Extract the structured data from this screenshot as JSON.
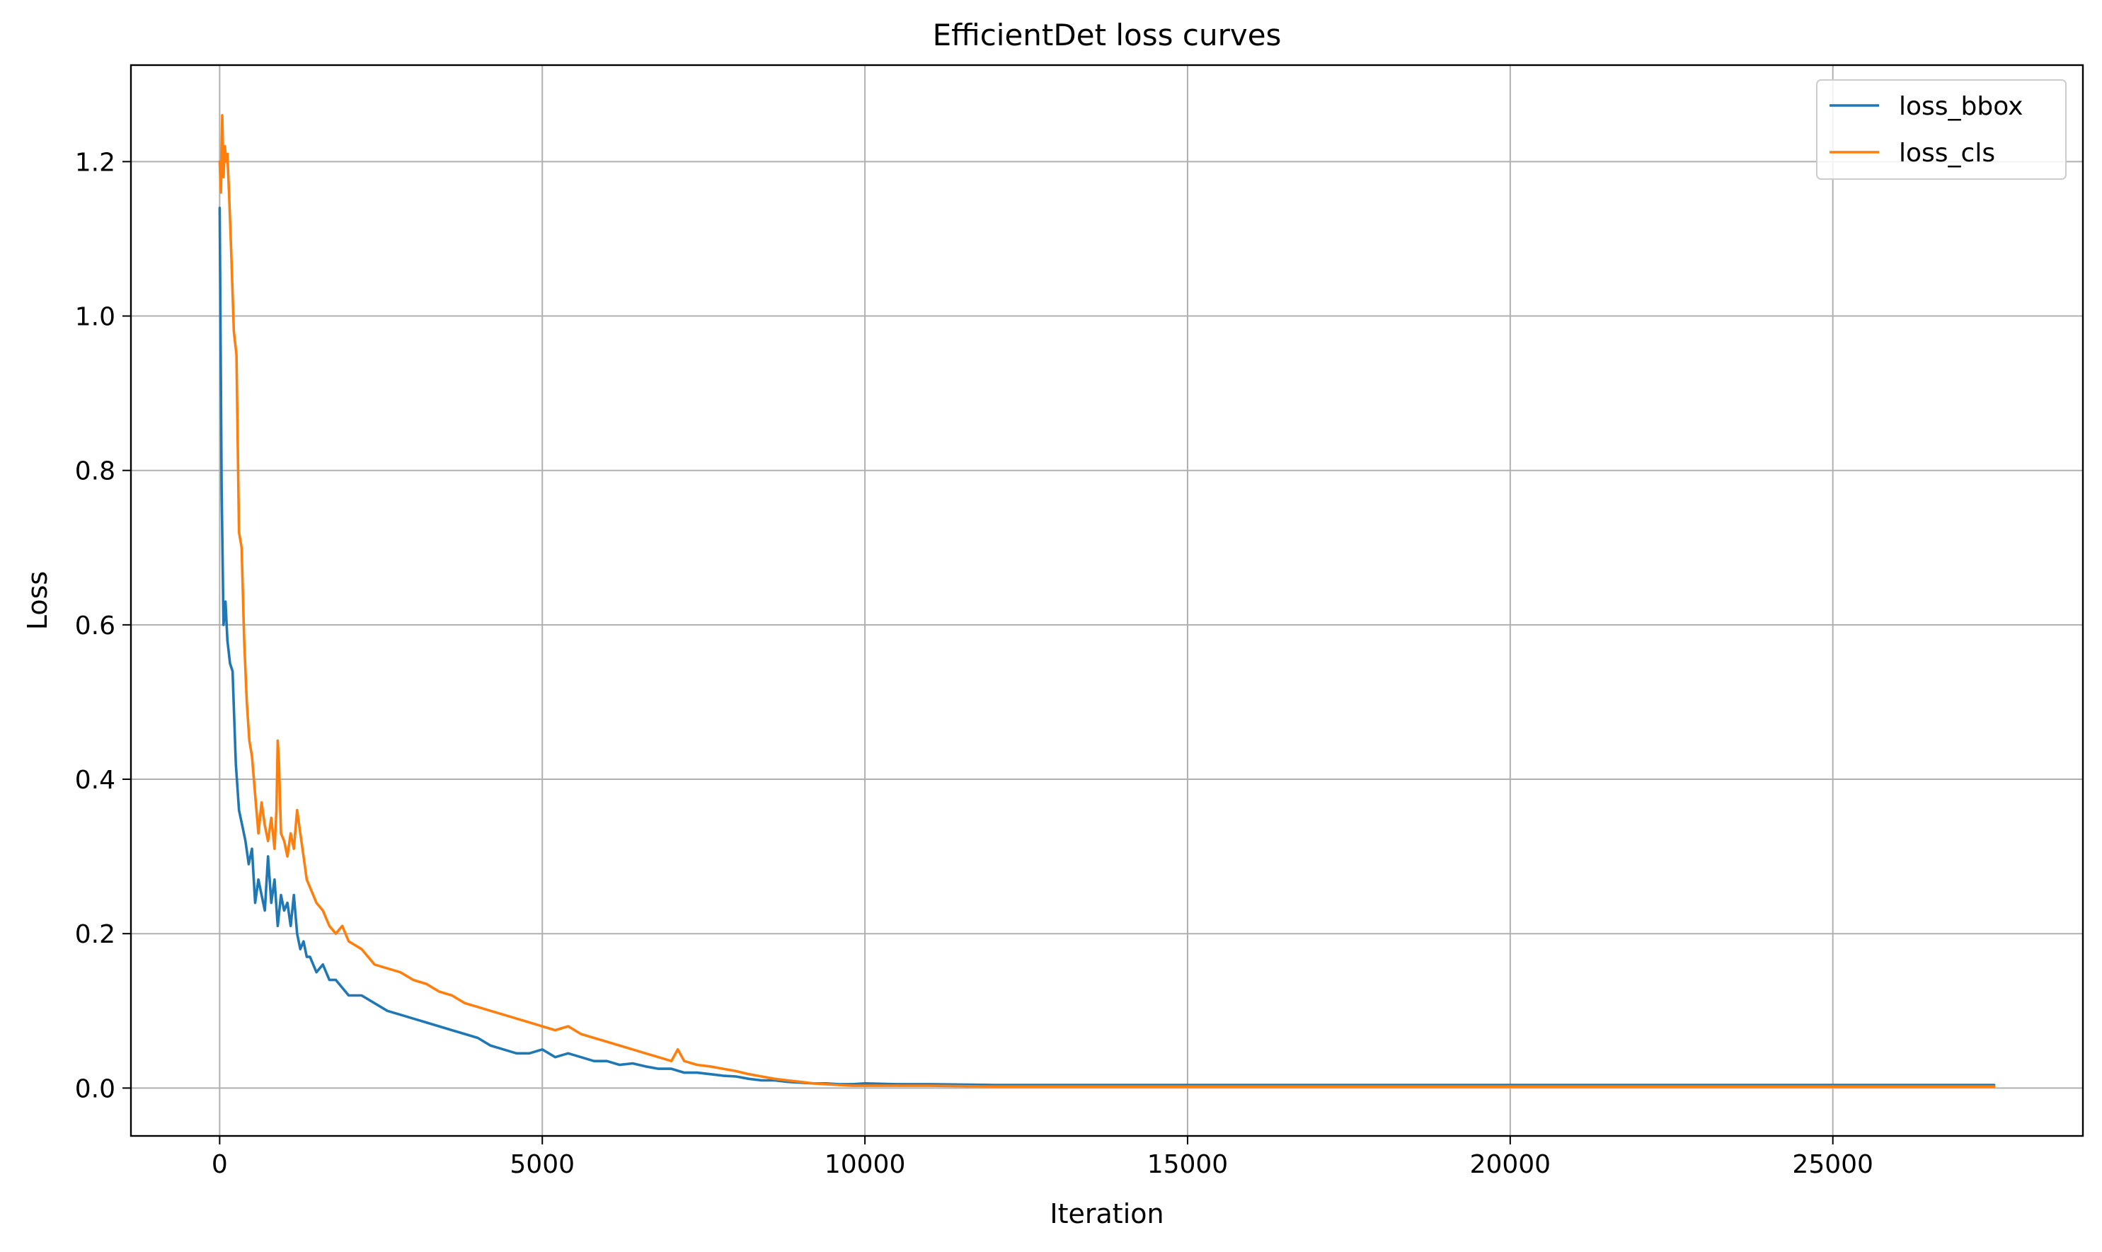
{
  "chart_data": {
    "type": "line",
    "title": "EfficientDet loss curves",
    "xlabel": "Iteration",
    "ylabel": "Loss",
    "xlim": [
      -1375,
      28875
    ],
    "ylim": [
      -0.062,
      1.325
    ],
    "xticks": [
      0,
      5000,
      10000,
      15000,
      20000,
      25000
    ],
    "xtick_labels": [
      "0",
      "5000",
      "10000",
      "15000",
      "20000",
      "25000"
    ],
    "yticks": [
      0.0,
      0.2,
      0.4,
      0.6,
      0.8,
      1.0,
      1.2
    ],
    "ytick_labels": [
      "0.0",
      "0.2",
      "0.4",
      "0.6",
      "0.8",
      "1.0",
      "1.2"
    ],
    "grid": true,
    "legend_position": "top-right",
    "series": [
      {
        "name": "loss_bbox",
        "color": "#1f77b4",
        "x": [
          0,
          30,
          60,
          90,
          120,
          160,
          200,
          250,
          300,
          350,
          400,
          450,
          500,
          550,
          600,
          650,
          700,
          750,
          800,
          850,
          900,
          950,
          1000,
          1050,
          1100,
          1150,
          1200,
          1250,
          1300,
          1350,
          1400,
          1500,
          1600,
          1700,
          1800,
          1900,
          2000,
          2200,
          2400,
          2600,
          2800,
          3000,
          3200,
          3400,
          3600,
          3800,
          4000,
          4200,
          4400,
          4600,
          4800,
          5000,
          5200,
          5400,
          5600,
          5800,
          6000,
          6200,
          6400,
          6600,
          6800,
          7000,
          7200,
          7400,
          7600,
          7800,
          8000,
          8200,
          8400,
          8600,
          8800,
          9000,
          9200,
          9400,
          9600,
          9800,
          10000,
          10500,
          11000,
          12000,
          13000,
          14000,
          15000,
          16000,
          17000,
          18000,
          19000,
          20000,
          21000,
          22000,
          23000,
          24000,
          25000,
          26000,
          27000,
          27500
        ],
        "y": [
          1.14,
          0.78,
          0.6,
          0.63,
          0.58,
          0.55,
          0.54,
          0.42,
          0.36,
          0.34,
          0.32,
          0.29,
          0.31,
          0.24,
          0.27,
          0.25,
          0.23,
          0.3,
          0.24,
          0.27,
          0.21,
          0.25,
          0.23,
          0.24,
          0.21,
          0.25,
          0.2,
          0.18,
          0.19,
          0.17,
          0.17,
          0.15,
          0.16,
          0.14,
          0.14,
          0.13,
          0.12,
          0.12,
          0.11,
          0.1,
          0.095,
          0.09,
          0.085,
          0.08,
          0.075,
          0.07,
          0.065,
          0.055,
          0.05,
          0.045,
          0.045,
          0.05,
          0.04,
          0.045,
          0.04,
          0.035,
          0.035,
          0.03,
          0.032,
          0.028,
          0.025,
          0.025,
          0.02,
          0.02,
          0.018,
          0.016,
          0.015,
          0.012,
          0.01,
          0.01,
          0.008,
          0.007,
          0.006,
          0.006,
          0.005,
          0.005,
          0.006,
          0.005,
          0.005,
          0.004,
          0.004,
          0.004,
          0.004,
          0.004,
          0.004,
          0.004,
          0.004,
          0.004,
          0.004,
          0.004,
          0.004,
          0.004,
          0.004,
          0.004,
          0.004,
          0.004
        ]
      },
      {
        "name": "loss_cls",
        "color": "#ff7f0e",
        "x": [
          0,
          20,
          40,
          60,
          80,
          100,
          120,
          150,
          180,
          220,
          260,
          300,
          340,
          380,
          420,
          460,
          500,
          550,
          600,
          650,
          700,
          750,
          800,
          850,
          880,
          900,
          920,
          950,
          1000,
          1050,
          1100,
          1150,
          1200,
          1250,
          1300,
          1350,
          1400,
          1500,
          1600,
          1700,
          1800,
          1900,
          2000,
          2200,
          2400,
          2600,
          2800,
          3000,
          3200,
          3400,
          3600,
          3800,
          4000,
          4200,
          4400,
          4600,
          4800,
          5000,
          5200,
          5400,
          5600,
          5800,
          6000,
          6200,
          6400,
          6600,
          6800,
          7000,
          7100,
          7200,
          7400,
          7600,
          7800,
          8000,
          8200,
          8400,
          8600,
          8800,
          9000,
          9200,
          9400,
          9600,
          9800,
          10000,
          10500,
          11000,
          12000,
          13000,
          14000,
          15000,
          16000,
          17000,
          18000,
          19000,
          20000,
          21000,
          22000,
          23000,
          24000,
          25000,
          26000,
          27000,
          27500
        ],
        "y": [
          1.2,
          1.16,
          1.26,
          1.18,
          1.22,
          1.2,
          1.21,
          1.15,
          1.08,
          0.98,
          0.95,
          0.72,
          0.7,
          0.58,
          0.5,
          0.45,
          0.43,
          0.38,
          0.33,
          0.37,
          0.34,
          0.32,
          0.35,
          0.31,
          0.36,
          0.45,
          0.42,
          0.33,
          0.32,
          0.3,
          0.33,
          0.31,
          0.36,
          0.33,
          0.3,
          0.27,
          0.26,
          0.24,
          0.23,
          0.21,
          0.2,
          0.21,
          0.19,
          0.18,
          0.16,
          0.155,
          0.15,
          0.14,
          0.135,
          0.125,
          0.12,
          0.11,
          0.105,
          0.1,
          0.095,
          0.09,
          0.085,
          0.08,
          0.075,
          0.08,
          0.07,
          0.065,
          0.06,
          0.055,
          0.05,
          0.045,
          0.04,
          0.035,
          0.05,
          0.035,
          0.03,
          0.028,
          0.025,
          0.022,
          0.018,
          0.015,
          0.012,
          0.01,
          0.008,
          0.006,
          0.005,
          0.004,
          0.003,
          0.003,
          0.003,
          0.003,
          0.002,
          0.002,
          0.002,
          0.002,
          0.002,
          0.002,
          0.002,
          0.002,
          0.002,
          0.002,
          0.002,
          0.002,
          0.002,
          0.002,
          0.002,
          0.002,
          0.002
        ]
      }
    ]
  }
}
